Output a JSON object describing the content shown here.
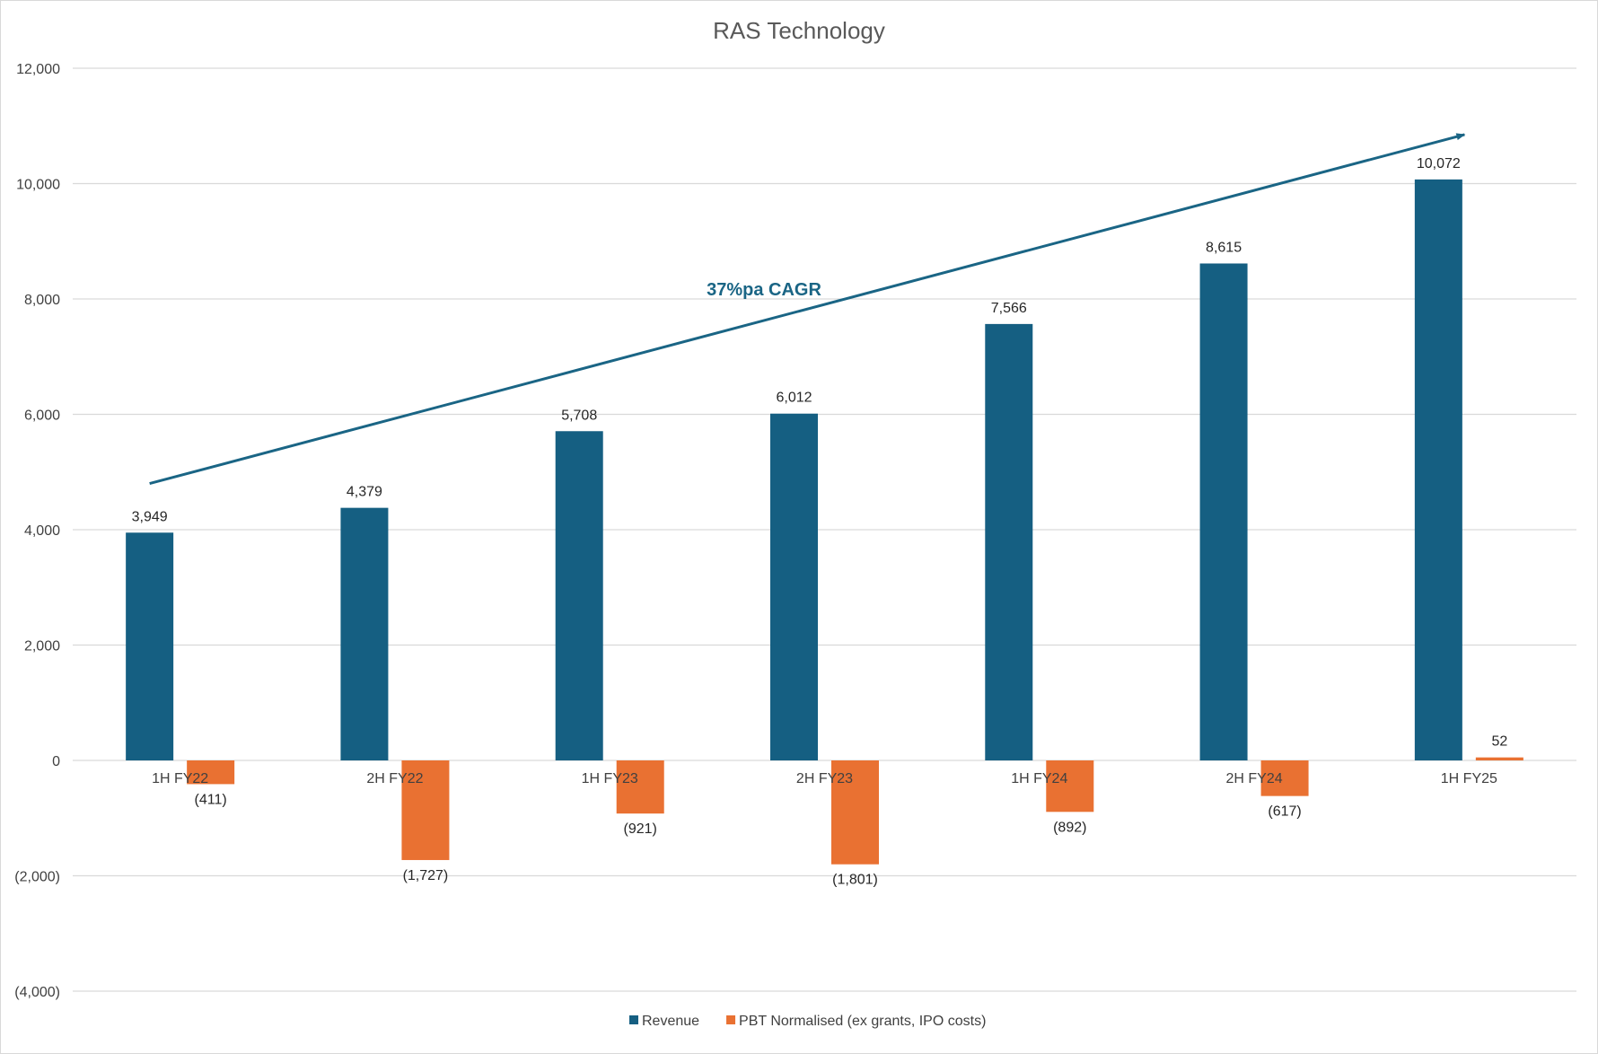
{
  "chart_data": {
    "type": "bar",
    "title": "RAS Technology",
    "categories": [
      "1H FY22",
      "2H FY22",
      "1H FY23",
      "2H FY23",
      "1H FY24",
      "2H FY24",
      "1H FY25"
    ],
    "series": [
      {
        "name": "Revenue",
        "color": "#155f82",
        "values": [
          3949,
          4379,
          5708,
          6012,
          7566,
          8615,
          10072
        ],
        "labels": [
          "3,949",
          "4,379",
          "5,708",
          "6,012",
          "7,566",
          "8,615",
          "10,072"
        ]
      },
      {
        "name": "PBT Normalised (ex grants, IPO costs)",
        "color": "#e97132",
        "values": [
          -411,
          -1727,
          -921,
          -1801,
          -892,
          -617,
          52
        ],
        "labels": [
          "(411)",
          "(1,727)",
          "(921)",
          "(1,801)",
          "(892)",
          "(617)",
          "52"
        ]
      }
    ],
    "ylim": [
      -4000,
      12000
    ],
    "yticks": [
      12000,
      10000,
      8000,
      6000,
      4000,
      2000,
      0,
      -2000,
      -4000
    ],
    "ytick_labels": [
      "12,000",
      "10,000",
      "8,000",
      "6,000",
      "4,000",
      "2,000",
      "0",
      "(2,000)",
      "(4,000)"
    ],
    "grid": true,
    "legend_position": "bottom",
    "annotation": {
      "text": "37%pa CAGR",
      "color": "#1a6585",
      "arrow_from": {
        "category": "1H FY22",
        "value": 4800
      },
      "arrow_to": {
        "category": "1H FY25",
        "value": 10850
      }
    }
  }
}
